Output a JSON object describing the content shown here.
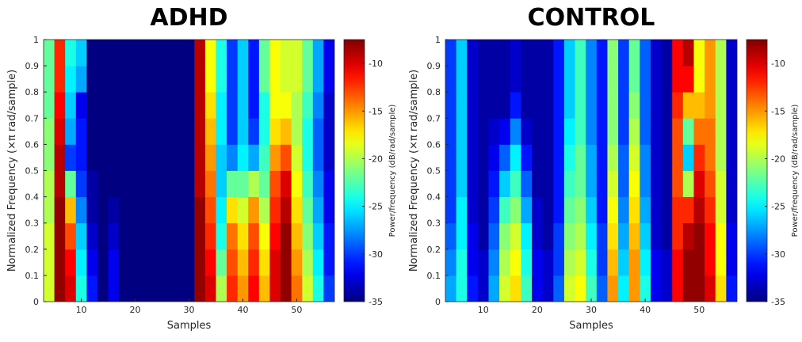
{
  "chart_data": [
    {
      "type": "heatmap",
      "title": "ADHD",
      "xlabel": "Samples",
      "ylabel": "Normalized Frequency  (×π rad/sample)",
      "colormap": "jet",
      "x": [
        4,
        6,
        8,
        10,
        12,
        14,
        16,
        18,
        20,
        22,
        24,
        26,
        28,
        30,
        32,
        34,
        36,
        38,
        40,
        42,
        44,
        46,
        48,
        50,
        52,
        54,
        56
      ],
      "y": [
        0.05,
        0.15,
        0.25,
        0.35,
        0.45,
        0.55,
        0.65,
        0.75,
        0.85,
        0.95
      ],
      "values": [
        [
          -19,
          -19,
          -19,
          -20,
          -20,
          -21,
          -21,
          -22,
          -22,
          -22
        ],
        [
          -8,
          -8,
          -8,
          -8,
          -9,
          -9,
          -10,
          -11,
          -12,
          -12
        ],
        [
          -10,
          -11,
          -13,
          -16,
          -22,
          -30,
          -27,
          -26,
          -25,
          -24
        ],
        [
          -24,
          -25,
          -26,
          -28,
          -30,
          -31,
          -31,
          -32,
          -27,
          -26
        ],
        [
          -31,
          -32,
          -33,
          -34,
          -34,
          -35,
          -35,
          -35,
          -35,
          -35
        ],
        [
          -35,
          -35,
          -35,
          -35,
          -35,
          -35,
          -35,
          -35,
          -35,
          -35
        ],
        [
          -32,
          -32,
          -33,
          -34,
          -35,
          -35,
          -35,
          -35,
          -35,
          -35
        ],
        [
          -35,
          -35,
          -35,
          -35,
          -35,
          -35,
          -35,
          -35,
          -35,
          -35
        ],
        [
          -35,
          -35,
          -35,
          -35,
          -35,
          -35,
          -35,
          -35,
          -35,
          -35
        ],
        [
          -35,
          -35,
          -35,
          -35,
          -35,
          -35,
          -35,
          -35,
          -35,
          -35
        ],
        [
          -35,
          -35,
          -35,
          -35,
          -35,
          -35,
          -35,
          -35,
          -35,
          -35
        ],
        [
          -35,
          -35,
          -35,
          -35,
          -35,
          -35,
          -35,
          -35,
          -35,
          -35
        ],
        [
          -35,
          -35,
          -35,
          -35,
          -35,
          -35,
          -35,
          -35,
          -35,
          -35
        ],
        [
          -35,
          -35,
          -35,
          -35,
          -35,
          -35,
          -35,
          -35,
          -35,
          -35
        ],
        [
          -8,
          -8,
          -8,
          -8,
          -9,
          -9,
          -9,
          -9,
          -9,
          -9
        ],
        [
          -10,
          -11,
          -12,
          -13,
          -14,
          -15,
          -16,
          -17,
          -18,
          -18
        ],
        [
          -20,
          -22,
          -24,
          -25,
          -26,
          -26,
          -25,
          -25,
          -24,
          -24
        ],
        [
          -12,
          -13,
          -14,
          -17,
          -22,
          -28,
          -30,
          -30,
          -30,
          -30
        ],
        [
          -15,
          -16,
          -17,
          -19,
          -22,
          -25,
          -26,
          -26,
          -26,
          -26
        ],
        [
          -11,
          -12,
          -13,
          -15,
          -20,
          -27,
          -30,
          -31,
          -31,
          -31
        ],
        [
          -16,
          -17,
          -18,
          -20,
          -22,
          -23,
          -24,
          -24,
          -22,
          -22
        ],
        [
          -10,
          -10,
          -11,
          -12,
          -13,
          -15,
          -17,
          -18,
          -18,
          -18
        ],
        [
          -8,
          -8,
          -8,
          -9,
          -10,
          -13,
          -16,
          -18,
          -19,
          -19
        ],
        [
          -14,
          -15,
          -16,
          -17,
          -18,
          -19,
          -20,
          -20,
          -19,
          -19
        ],
        [
          -19,
          -20,
          -21,
          -22,
          -23,
          -24,
          -24,
          -23,
          -22,
          -22
        ],
        [
          -24,
          -25,
          -26,
          -27,
          -28,
          -29,
          -29,
          -28,
          -27,
          -27
        ],
        [
          -30,
          -31,
          -31,
          -32,
          -32,
          -33,
          -33,
          -33,
          -32,
          -32
        ]
      ],
      "xlim": [
        3,
        57
      ],
      "xticks": [
        10,
        20,
        30,
        40,
        50
      ],
      "ylim": [
        0,
        1
      ],
      "yticks": [
        0,
        0.1,
        0.2,
        0.3,
        0.4,
        0.5,
        0.6,
        0.7,
        0.8,
        0.9,
        1
      ],
      "colorbar": {
        "label": "Power/frequency (dB/rad/sample)",
        "clim": [
          -35,
          -7.5
        ],
        "ticks": [
          -35,
          -30,
          -25,
          -20,
          -15,
          -10
        ]
      }
    },
    {
      "type": "heatmap",
      "title": "CONTROL",
      "xlabel": "Samples",
      "ylabel": "Normalized Frequency  (×π rad/sample)",
      "colormap": "jet",
      "x": [
        4,
        6,
        8,
        10,
        12,
        14,
        16,
        18,
        20,
        22,
        24,
        26,
        28,
        30,
        32,
        34,
        36,
        38,
        40,
        42,
        44,
        46,
        48,
        50,
        52,
        54,
        56
      ],
      "y": [
        0.05,
        0.15,
        0.25,
        0.35,
        0.45,
        0.55,
        0.65,
        0.75,
        0.85,
        0.95
      ],
      "values": [
        [
          -27,
          -28,
          -29,
          -30,
          -30,
          -30,
          -30,
          -30,
          -30,
          -30
        ],
        [
          -24,
          -24,
          -25,
          -25,
          -26,
          -26,
          -26,
          -26,
          -26,
          -26
        ],
        [
          -31,
          -32,
          -32,
          -33,
          -33,
          -33,
          -33,
          -33,
          -33,
          -33
        ],
        [
          -33,
          -33,
          -34,
          -34,
          -34,
          -34,
          -34,
          -34,
          -34,
          -34
        ],
        [
          -27,
          -28,
          -29,
          -30,
          -31,
          -32,
          -33,
          -34,
          -34,
          -34
        ],
        [
          -19,
          -20,
          -21,
          -23,
          -26,
          -29,
          -32,
          -34,
          -34,
          -34
        ],
        [
          -17,
          -18,
          -19,
          -21,
          -23,
          -25,
          -28,
          -31,
          -33,
          -33
        ],
        [
          -23,
          -24,
          -25,
          -27,
          -29,
          -31,
          -33,
          -34,
          -34,
          -34
        ],
        [
          -32,
          -32,
          -33,
          -33,
          -34,
          -34,
          -34,
          -34,
          -34,
          -34
        ],
        [
          -33,
          -33,
          -34,
          -34,
          -34,
          -34,
          -34,
          -34,
          -34,
          -34
        ],
        [
          -29,
          -30,
          -30,
          -31,
          -31,
          -31,
          -31,
          -31,
          -31,
          -31
        ],
        [
          -19,
          -20,
          -21,
          -22,
          -23,
          -24,
          -25,
          -26,
          -26,
          -26
        ],
        [
          -18,
          -19,
          -20,
          -21,
          -22,
          -22,
          -23,
          -23,
          -23,
          -23
        ],
        [
          -23,
          -24,
          -25,
          -26,
          -27,
          -27,
          -28,
          -28,
          -28,
          -28
        ],
        [
          -29,
          -30,
          -30,
          -31,
          -31,
          -31,
          -31,
          -31,
          -31,
          -31
        ],
        [
          -15,
          -16,
          -17,
          -18,
          -19,
          -20,
          -21,
          -21,
          -21,
          -21
        ],
        [
          -25,
          -26,
          -27,
          -28,
          -29,
          -29,
          -30,
          -30,
          -30,
          -30
        ],
        [
          -15,
          -15,
          -16,
          -17,
          -18,
          -19,
          -20,
          -21,
          -22,
          -22
        ],
        [
          -24,
          -25,
          -26,
          -27,
          -28,
          -28,
          -29,
          -29,
          -29,
          -29
        ],
        [
          -32,
          -32,
          -33,
          -33,
          -33,
          -33,
          -33,
          -33,
          -33,
          -33
        ],
        [
          -33,
          -33,
          -34,
          -34,
          -34,
          -34,
          -34,
          -34,
          -34,
          -34
        ],
        [
          -11,
          -11,
          -12,
          -12,
          -13,
          -13,
          -13,
          -12,
          -11,
          -11
        ],
        [
          -8,
          -8,
          -9,
          -12,
          -20,
          -26,
          -22,
          -16,
          -11,
          -9
        ],
        [
          -8,
          -8,
          -8,
          -9,
          -10,
          -12,
          -14,
          -16,
          -18,
          -18
        ],
        [
          -10,
          -11,
          -11,
          -12,
          -13,
          -14,
          -14,
          -15,
          -15,
          -15
        ],
        [
          -17,
          -18,
          -18,
          -19,
          -19,
          -20,
          -20,
          -20,
          -20,
          -20
        ],
        [
          -31,
          -32,
          -32,
          -33,
          -33,
          -33,
          -33,
          -33,
          -33,
          -33
        ]
      ],
      "xlim": [
        3,
        57
      ],
      "xticks": [
        10,
        20,
        30,
        40,
        50
      ],
      "ylim": [
        0,
        1
      ],
      "yticks": [
        0,
        0.1,
        0.2,
        0.3,
        0.4,
        0.5,
        0.6,
        0.7,
        0.8,
        0.9,
        1
      ],
      "colorbar": {
        "label": "Power/frequency (dB/rad/sample)",
        "clim": [
          -35,
          -7.5
        ],
        "ticks": [
          -35,
          -30,
          -25,
          -20,
          -15,
          -10
        ]
      }
    }
  ]
}
